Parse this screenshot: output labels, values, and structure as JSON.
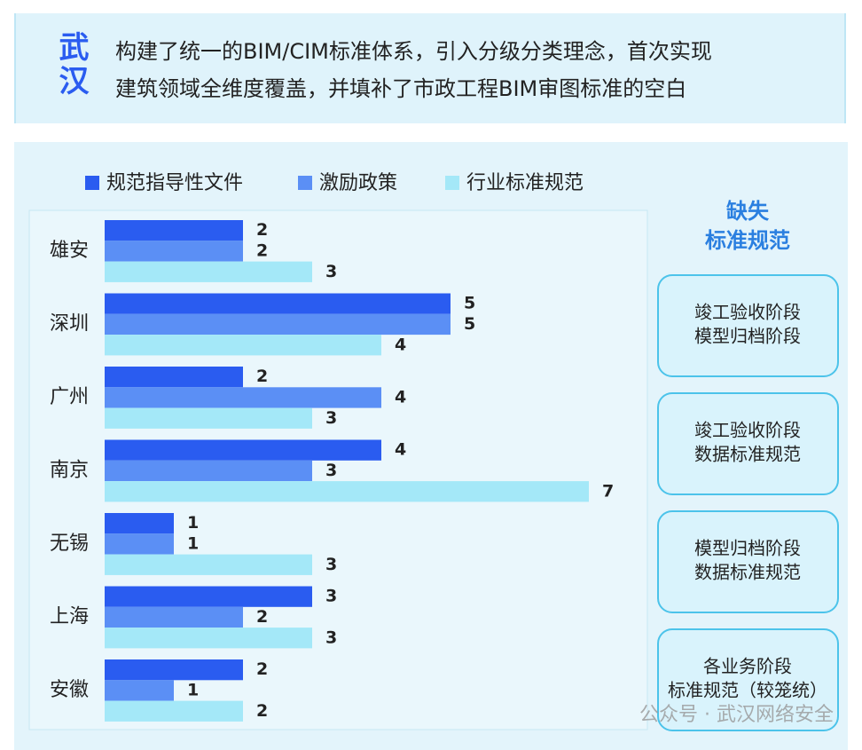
{
  "banner": {
    "city": "武汉",
    "lines": [
      "构建了统一的BIM/CIM标准体系，引入分级分类理念，首次实现",
      "建筑领域全维度覆盖，并填补了市政工程BIM审图标准的空白"
    ]
  },
  "chart_data": {
    "type": "bar",
    "orientation": "horizontal",
    "categories": [
      "雄安",
      "深圳",
      "广州",
      "南京",
      "无锡",
      "上海",
      "安徽"
    ],
    "series": [
      {
        "name": "规范指导性文件",
        "color": "#2a5cf0",
        "values": [
          2,
          5,
          2,
          4,
          1,
          3,
          2
        ]
      },
      {
        "name": "激励政策",
        "color": "#5b8ff5",
        "values": [
          2,
          5,
          4,
          3,
          1,
          2,
          1
        ]
      },
      {
        "name": "行业标准规范",
        "color": "#a4e8f8",
        "values": [
          3,
          4,
          3,
          7,
          3,
          3,
          2
        ]
      }
    ]
  },
  "side_panel": {
    "title": [
      "缺失",
      "标准规范"
    ],
    "items": [
      [
        "竣工验收阶段",
        "模型归档阶段"
      ],
      [
        "竣工验收阶段",
        "数据标准规范"
      ],
      [
        "模型归档阶段",
        "数据标准规范"
      ],
      [
        "各业务阶段",
        "标准规范（较笼统）"
      ]
    ]
  },
  "watermark": "公众号 · 武汉网络安全"
}
